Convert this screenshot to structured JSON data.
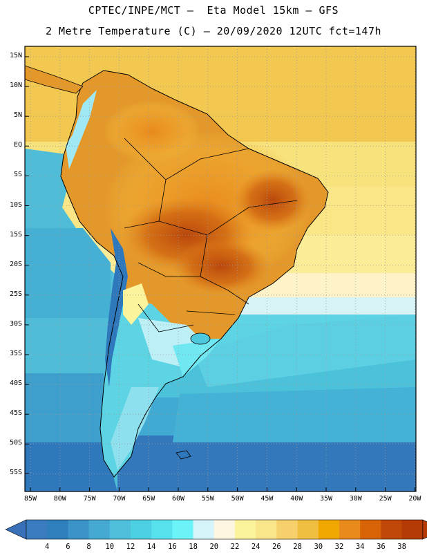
{
  "title_line1": "CPTEC/INPE/MCT –  Eta Model 15km – GFS",
  "title_line2": "2 Metre Temperature (C) – 20/09/2020 12UTC fct=147h",
  "lat_labels": [
    "15N",
    "10N",
    "5N",
    "EQ",
    "5S",
    "10S",
    "15S",
    "20S",
    "25S",
    "30S",
    "35S",
    "40S",
    "45S",
    "50S",
    "55S"
  ],
  "lon_labels": [
    "85W",
    "80W",
    "75W",
    "70W",
    "65W",
    "60W",
    "55W",
    "50W",
    "45W",
    "40W",
    "35W",
    "30W",
    "25W",
    "20W"
  ],
  "colorbar": {
    "labels": [
      "4",
      "6",
      "8",
      "10",
      "12",
      "14",
      "16",
      "18",
      "20",
      "22",
      "24",
      "26",
      "28",
      "30",
      "32",
      "34",
      "36",
      "38"
    ],
    "colors": [
      "#3a7cc0",
      "#2f7fbd",
      "#3b93c8",
      "#46a9d2",
      "#4fbfdc",
      "#4dd0e1",
      "#56e1ec",
      "#6cf3f8",
      "#d6f5fb",
      "#fdf6e0",
      "#fcf49c",
      "#f9e58a",
      "#f6d06a",
      "#f0bf40",
      "#f0a800",
      "#e88a1c",
      "#d96408",
      "#c04808",
      "#b53b06"
    ],
    "left_arrow_color": "#3a70b8",
    "right_arrow_color": "#b53b06"
  }
}
